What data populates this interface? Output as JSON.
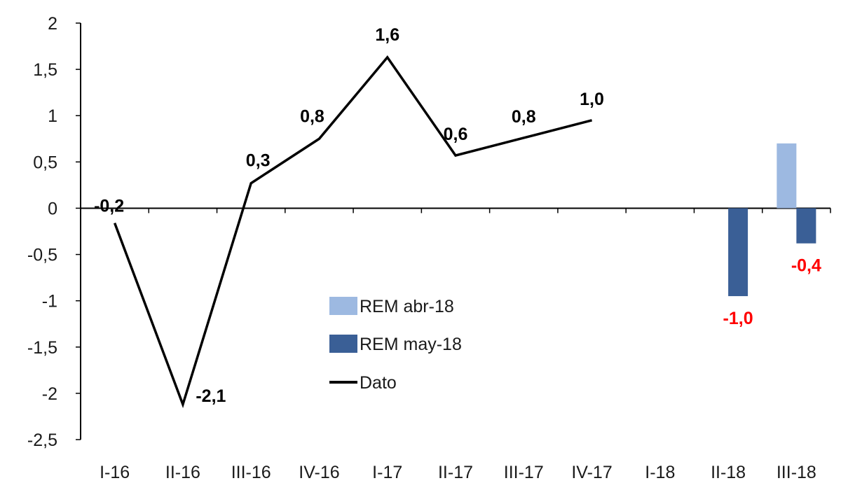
{
  "chart_data": {
    "type": "bar",
    "categories": [
      "I-16",
      "II-16",
      "III-16",
      "IV-16",
      "I-17",
      "II-17",
      "III-17",
      "IV-17",
      "I-18",
      "II-18",
      "III-18"
    ],
    "ylim": [
      -2.5,
      2
    ],
    "yticks": [
      2,
      1.5,
      1,
      0.5,
      0,
      -0.5,
      -1,
      -1.5,
      -2,
      -2.5
    ],
    "ytick_labels": [
      "2",
      "1,5",
      "1",
      "0,5",
      "0",
      "-0,5",
      "-1",
      "-1,5",
      "-2",
      "-2,5"
    ],
    "title": "",
    "xlabel": "",
    "ylabel": "",
    "legend": {
      "placement": "center-lower",
      "entries": [
        "REM abr-18",
        "REM may-18",
        "Dato"
      ]
    },
    "series": [
      {
        "name": "REM abr-18",
        "kind": "bar",
        "color": "#9DB9E1",
        "values": [
          null,
          null,
          null,
          null,
          null,
          null,
          null,
          null,
          null,
          null,
          0.7
        ],
        "labels": [
          null,
          null,
          null,
          null,
          null,
          null,
          null,
          null,
          null,
          null,
          null
        ]
      },
      {
        "name": "REM may-18",
        "kind": "bar",
        "color": "#3A5F96",
        "values": [
          null,
          null,
          null,
          null,
          null,
          null,
          null,
          null,
          null,
          -0.95,
          -0.38
        ],
        "labels": [
          null,
          null,
          null,
          null,
          null,
          null,
          null,
          null,
          null,
          "-1,0",
          "-0,4"
        ],
        "label_color": "#FF0000"
      },
      {
        "name": "Dato",
        "kind": "line",
        "color": "#000000",
        "values": [
          -0.16,
          -2.12,
          0.27,
          0.75,
          1.63,
          0.57,
          0.76,
          0.95,
          null,
          null,
          null
        ],
        "labels": [
          "-0,2",
          "-2,1",
          "0,3",
          "0,8",
          "1,6",
          "0,6",
          "0,8",
          "1,0",
          null,
          null,
          null
        ],
        "label_color": "#000000"
      }
    ]
  }
}
